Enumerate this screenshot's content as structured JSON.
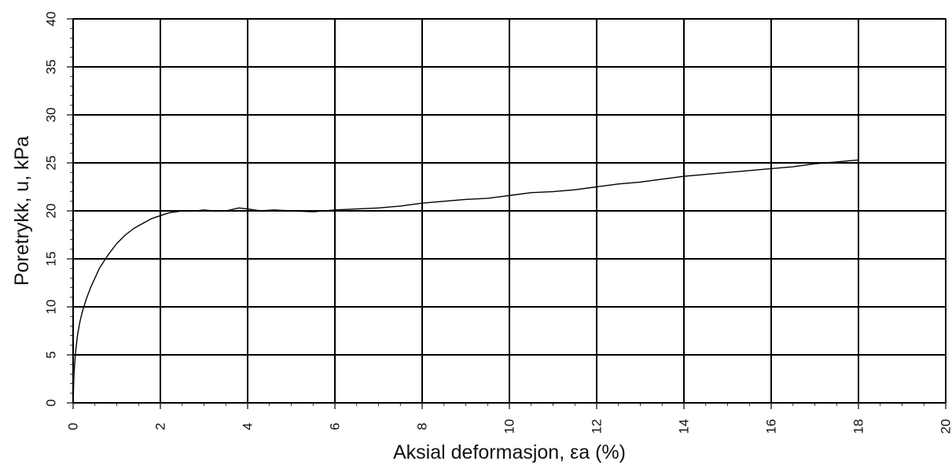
{
  "chart_data": {
    "type": "line",
    "title": "",
    "xlabel": "Aksial deformasjon, εa (%)",
    "ylabel": "Poretrykk, u, kPa",
    "xlim": [
      0,
      20
    ],
    "ylim": [
      0,
      40
    ],
    "x_ticks": [
      "0",
      "2",
      "4",
      "6",
      "8",
      "10",
      "12",
      "14",
      "16",
      "18",
      "20"
    ],
    "y_ticks": [
      "0",
      "5",
      "10",
      "15",
      "20",
      "25",
      "30",
      "35",
      "40"
    ],
    "grid": true,
    "legend": "none",
    "line_color": "#000000",
    "series": [
      {
        "x": [
          0,
          0.02,
          0.05,
          0.1,
          0.15,
          0.2,
          0.3,
          0.4,
          0.5,
          0.6,
          0.8,
          1.0,
          1.2,
          1.4,
          1.6,
          1.8,
          2.0,
          2.2,
          2.5,
          2.8,
          3.0,
          3.2,
          3.5,
          3.8,
          4.0,
          4.3,
          4.6,
          5.0,
          5.5,
          6.0,
          6.5,
          7.0,
          7.5,
          8.0,
          8.5,
          9.0,
          9.5,
          10.0,
          10.5,
          11.0,
          11.5,
          12.0,
          12.5,
          13.0,
          13.5,
          14.0,
          14.5,
          15.0,
          15.5,
          16.0,
          16.5,
          17.0,
          17.5,
          18.0
        ],
        "y": [
          0,
          3.0,
          5.0,
          7.0,
          8.3,
          9.3,
          10.8,
          12.0,
          13.0,
          14.0,
          15.4,
          16.6,
          17.5,
          18.2,
          18.7,
          19.2,
          19.5,
          19.8,
          20.0,
          20.0,
          20.1,
          20.0,
          20.0,
          20.3,
          20.2,
          20.0,
          20.1,
          20.0,
          19.9,
          20.1,
          20.2,
          20.3,
          20.5,
          20.8,
          21.0,
          21.2,
          21.3,
          21.6,
          21.9,
          22.0,
          22.2,
          22.5,
          22.8,
          23.0,
          23.3,
          23.6,
          23.8,
          24.0,
          24.2,
          24.4,
          24.6,
          24.9,
          25.1,
          25.3
        ]
      }
    ]
  }
}
